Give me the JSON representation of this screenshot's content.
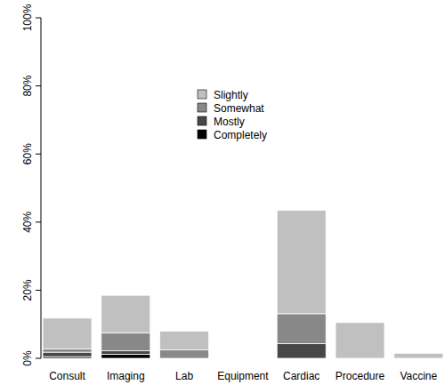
{
  "chart_data": {
    "type": "bar",
    "stacked": true,
    "legend": "top",
    "categories": [
      "Consult",
      "Imaging",
      "Lab",
      "Equipment",
      "Cardiac",
      "Procedure",
      "Vaccine"
    ],
    "series": [
      {
        "name": "Slightly",
        "color": "#c0c0c0",
        "values": [
          9,
          11,
          5.5,
          0,
          30.4,
          10.5,
          1.5
        ]
      },
      {
        "name": "Somewhat",
        "color": "#888888",
        "values": [
          1,
          5.3,
          2.5,
          0,
          8.8,
          0,
          0
        ]
      },
      {
        "name": "Mostly",
        "color": "#474747",
        "values": [
          1.3,
          1,
          0,
          0,
          4.3,
          0,
          0
        ]
      },
      {
        "name": "Completely",
        "color": "#000000",
        "values": [
          0.5,
          1.2,
          0,
          0,
          0,
          0,
          0
        ]
      }
    ],
    "ylim": [
      0,
      100
    ],
    "yticks": [
      {
        "value": 0,
        "label": "0%"
      },
      {
        "value": 20,
        "label": "20%"
      },
      {
        "value": 40,
        "label": "40%"
      },
      {
        "value": 60,
        "label": "60%"
      },
      {
        "value": 80,
        "label": "80%"
      },
      {
        "value": 100,
        "label": "100%"
      }
    ]
  }
}
